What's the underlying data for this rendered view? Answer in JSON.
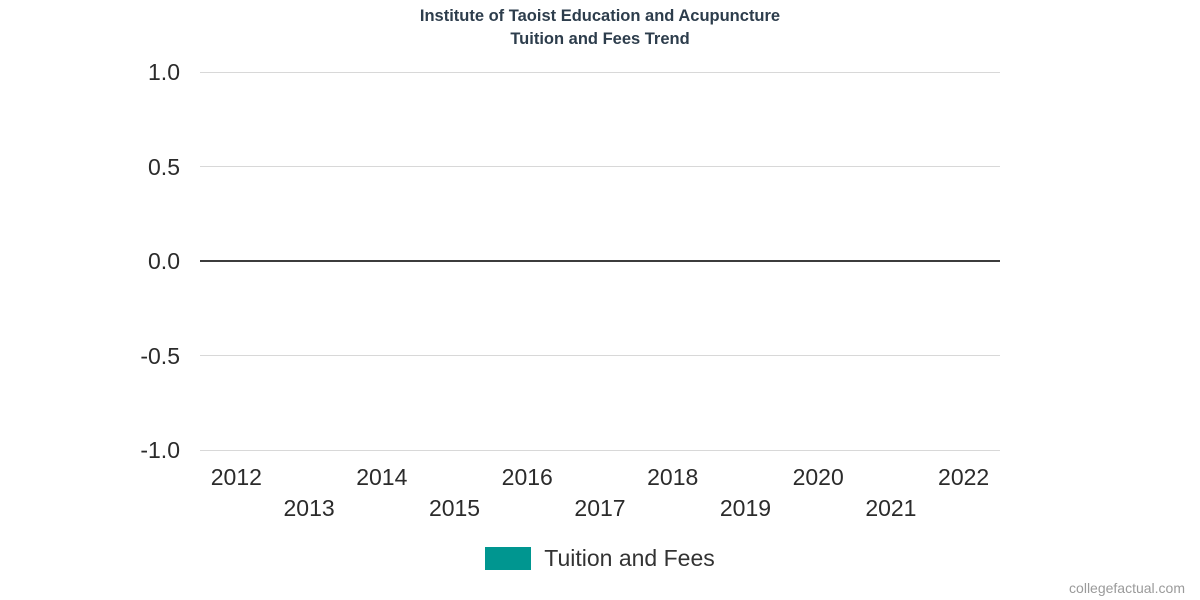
{
  "title": {
    "line1": "Institute of Taoist Education and Acupuncture",
    "line2": "Tuition and Fees Trend"
  },
  "legend": {
    "items": [
      {
        "label": "Tuition and Fees",
        "color": "#009690"
      }
    ]
  },
  "watermark": "collegefactual.com",
  "chart_data": {
    "type": "line",
    "title": "Institute of Taoist Education and Acupuncture",
    "subtitle": "Tuition and Fees Trend",
    "categories": [
      "2012",
      "2013",
      "2014",
      "2015",
      "2016",
      "2017",
      "2018",
      "2019",
      "2020",
      "2021",
      "2022"
    ],
    "series": [
      {
        "name": "Tuition and Fees",
        "color": "#009690",
        "values": []
      }
    ],
    "xlabel": "",
    "ylabel": "",
    "ylim": [
      -1.0,
      1.0
    ],
    "yticks": [
      {
        "label": "1.0",
        "value": 1.0
      },
      {
        "label": "0.5",
        "value": 0.5
      },
      {
        "label": "0.0",
        "value": 0.0
      },
      {
        "label": "-0.5",
        "value": -0.5
      },
      {
        "label": "-1.0",
        "value": -1.0
      }
    ],
    "grid": true,
    "zero_line": true,
    "legend_position": "bottom"
  }
}
